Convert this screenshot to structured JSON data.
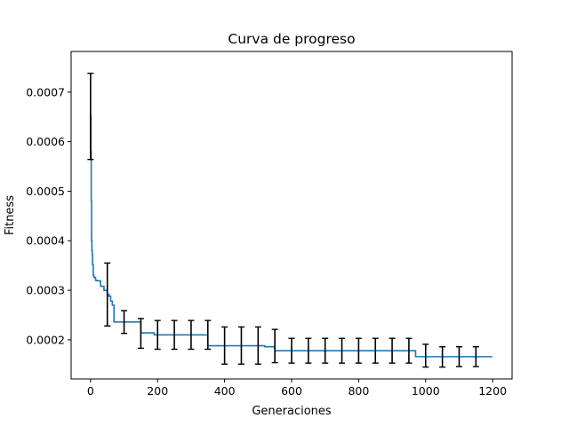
{
  "chart_data": {
    "type": "line",
    "title": "Curva de progreso",
    "xlabel": "Generaciones",
    "ylabel": "Fitness",
    "xlim": [
      -58,
      1258
    ],
    "ylim": [
      0.000121,
      0.000782
    ],
    "x_ticks": [
      0,
      200,
      400,
      600,
      800,
      1000,
      1200
    ],
    "x_tick_labels": [
      "0",
      "200",
      "400",
      "600",
      "800",
      "1000",
      "1200"
    ],
    "y_ticks": [
      0.0002,
      0.0003,
      0.0004,
      0.0005,
      0.0006,
      0.0007
    ],
    "y_tick_labels": [
      "0.0002",
      "0.0003",
      "0.0004",
      "0.0005",
      "0.0006",
      "0.0007"
    ],
    "grid": false,
    "series": [
      {
        "color": "#1f77b4",
        "x": [
          0,
          1,
          2,
          3,
          4,
          5,
          6,
          8,
          10,
          15,
          20,
          30,
          40,
          45,
          50,
          55,
          60,
          65,
          70,
          100,
          150,
          190,
          200,
          250,
          300,
          350,
          400,
          500,
          520,
          550,
          600,
          700,
          800,
          900,
          950,
          970,
          1000,
          1100,
          1199
        ],
        "y": [
          0.000652,
          0.00058,
          0.00048,
          0.0004,
          0.00038,
          0.000372,
          0.000352,
          0.00033,
          0.000326,
          0.00032,
          0.000319,
          0.000308,
          0.0003,
          0.0003,
          0.000292,
          0.000288,
          0.000278,
          0.00027,
          0.000236,
          0.000236,
          0.000214,
          0.00021,
          0.00021,
          0.00021,
          0.00021,
          0.000188,
          0.000188,
          0.000188,
          0.000186,
          0.000178,
          0.000178,
          0.000178,
          0.000178,
          0.000178,
          0.000178,
          0.000166,
          0.000166,
          0.000166,
          0.000166
        ]
      }
    ],
    "error_bars": {
      "color": "#000000",
      "x": [
        0,
        50,
        100,
        150,
        200,
        250,
        300,
        350,
        400,
        450,
        500,
        550,
        600,
        650,
        700,
        750,
        800,
        850,
        900,
        950,
        1000,
        1050,
        1100,
        1150
      ],
      "lower": [
        0.000564,
        0.000228,
        0.000213,
        0.000183,
        0.000181,
        0.000181,
        0.000181,
        0.000181,
        0.000151,
        0.000151,
        0.000151,
        0.000154,
        0.000153,
        0.000153,
        0.000153,
        0.000153,
        0.000153,
        0.000153,
        0.000153,
        0.000153,
        0.000145,
        0.000145,
        0.000146,
        0.000146
      ],
      "upper": [
        0.000738,
        0.000355,
        0.000259,
        0.000243,
        0.000239,
        0.000239,
        0.000239,
        0.000239,
        0.000226,
        0.000226,
        0.000226,
        0.000221,
        0.000203,
        0.000203,
        0.000203,
        0.000203,
        0.000203,
        0.000203,
        0.000203,
        0.000203,
        0.000191,
        0.000186,
        0.000186,
        0.000186
      ]
    }
  }
}
